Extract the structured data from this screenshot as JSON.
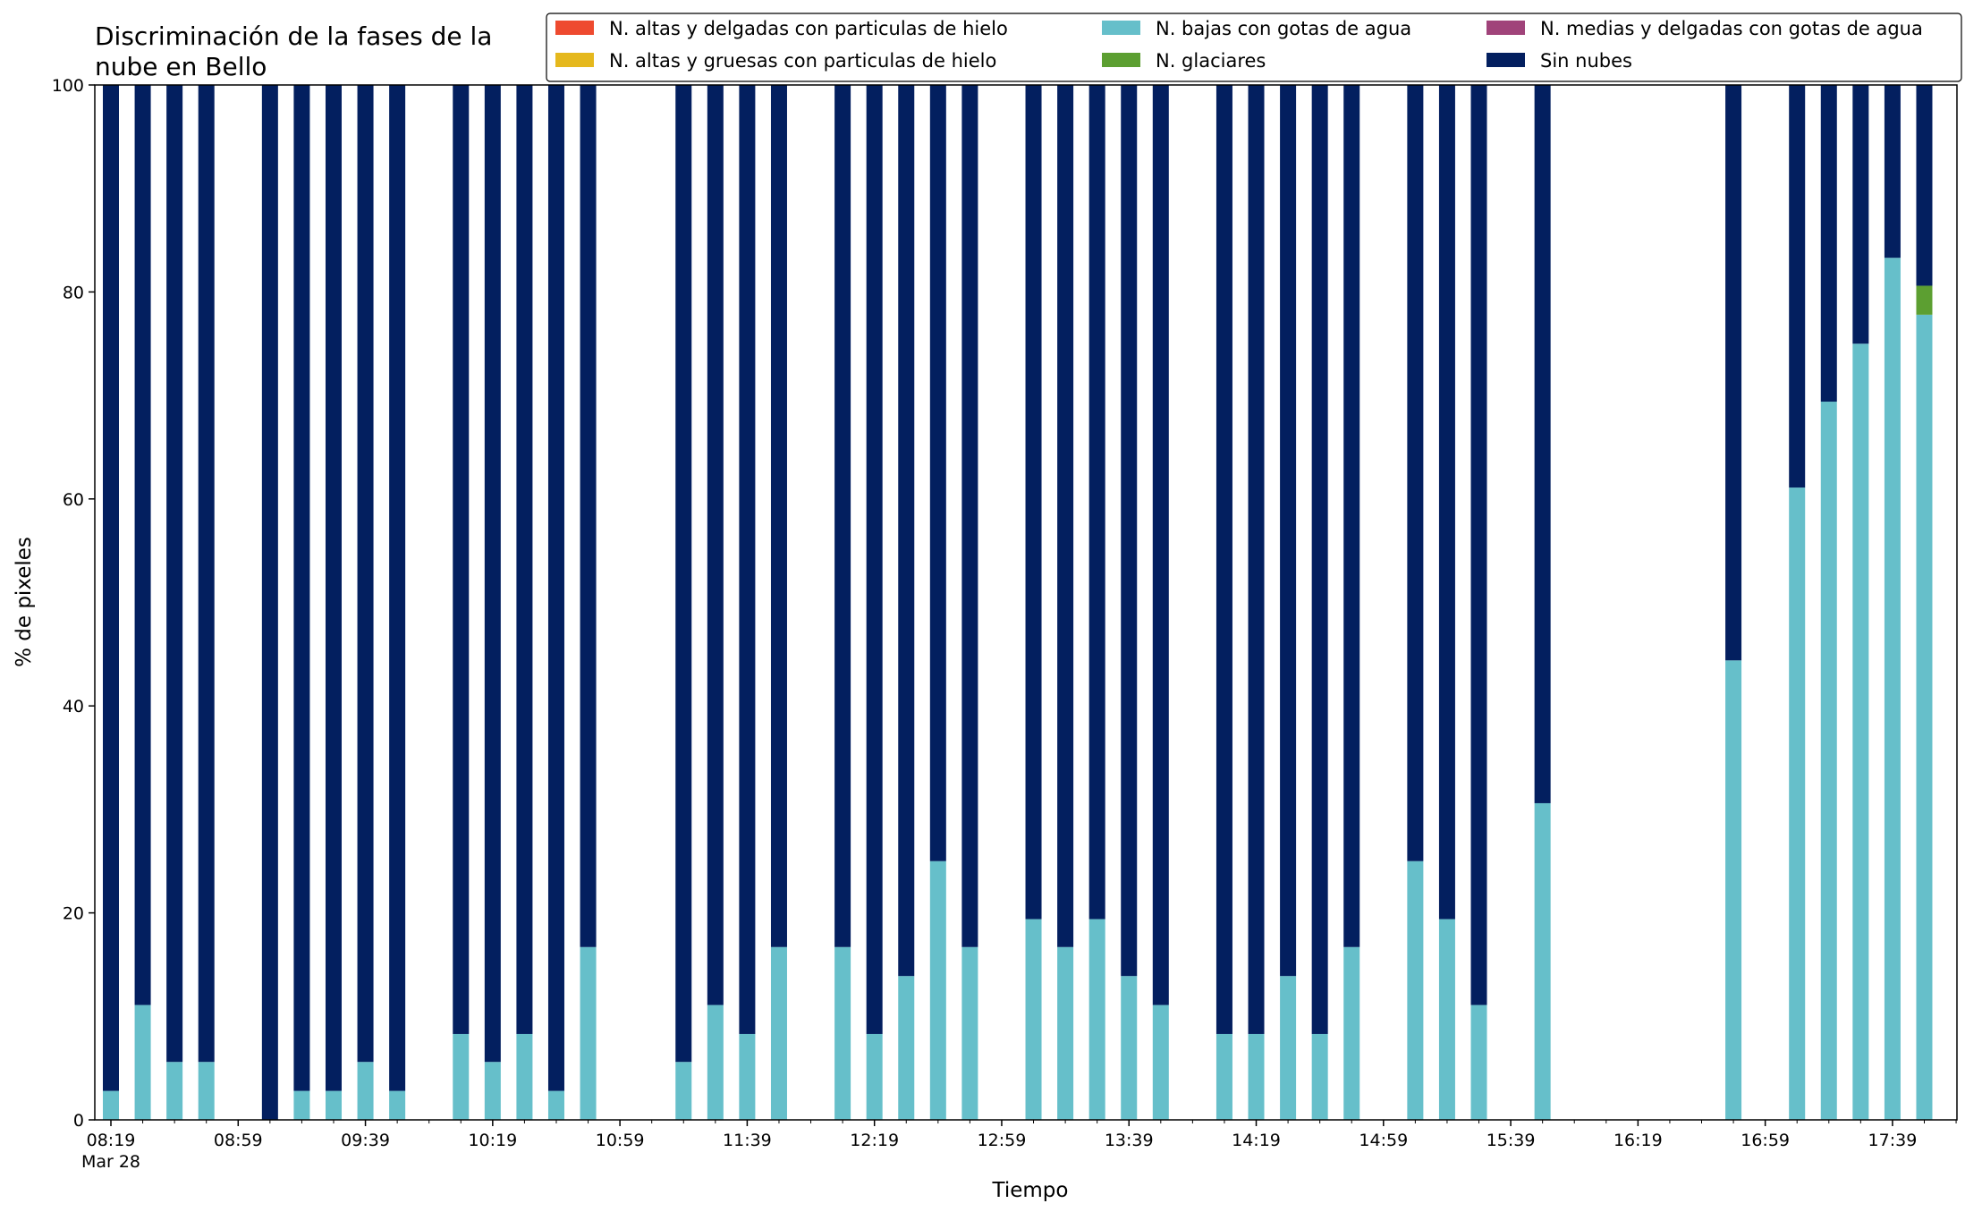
{
  "chart_data": {
    "type": "bar",
    "stacked": true,
    "title_line1": "Discriminación de la fases de la",
    "title_line2": "nube en Bello",
    "xlabel": "Tiempo",
    "ylabel": "% de pixeles",
    "ylim": [
      0,
      100
    ],
    "yticks": [
      "0",
      "20",
      "40",
      "60",
      "80",
      "100"
    ],
    "xtick_labels": [
      "08:19",
      "08:59",
      "09:39",
      "10:19",
      "10:59",
      "11:39",
      "12:19",
      "12:59",
      "13:39",
      "14:19",
      "14:59",
      "15:39",
      "16:19",
      "16:59",
      "17:39"
    ],
    "xtick_sublabel": "Mar 28",
    "minor_ticks_per_label": 4,
    "legend_position": "top-right",
    "legend_ncol": 3,
    "slot_count": 59,
    "series": [
      {
        "name": "N. altas y delgadas con particulas de hielo",
        "color": "#ee4a2f"
      },
      {
        "name": "N. altas y gruesas con particulas de hielo",
        "color": "#e5b81d"
      },
      {
        "name": "N. bajas con gotas de agua",
        "color": "#66bfca"
      },
      {
        "name": "N. glaciares",
        "color": "#5c9f31"
      },
      {
        "name": "N. medias y delgadas con gotas de agua",
        "color": "#a0437a"
      },
      {
        "name": "Sin nubes",
        "color": "#031f5f"
      }
    ],
    "bars": [
      {
        "slot": 0,
        "low": 2.8,
        "glacier": 0,
        "clear": 97.2
      },
      {
        "slot": 1,
        "low": 11.1,
        "glacier": 0,
        "clear": 88.9
      },
      {
        "slot": 2,
        "low": 5.6,
        "glacier": 0,
        "clear": 94.4
      },
      {
        "slot": 3,
        "low": 5.6,
        "glacier": 0,
        "clear": 94.4
      },
      {
        "slot": 5,
        "low": 0,
        "glacier": 0,
        "clear": 100
      },
      {
        "slot": 6,
        "low": 2.8,
        "glacier": 0,
        "clear": 97.2
      },
      {
        "slot": 7,
        "low": 2.8,
        "glacier": 0,
        "clear": 97.2
      },
      {
        "slot": 8,
        "low": 5.6,
        "glacier": 0,
        "clear": 94.4
      },
      {
        "slot": 9,
        "low": 2.8,
        "glacier": 0,
        "clear": 97.2
      },
      {
        "slot": 11,
        "low": 8.3,
        "glacier": 0,
        "clear": 91.7
      },
      {
        "slot": 12,
        "low": 5.6,
        "glacier": 0,
        "clear": 94.4
      },
      {
        "slot": 13,
        "low": 8.3,
        "glacier": 0,
        "clear": 91.7
      },
      {
        "slot": 14,
        "low": 2.8,
        "glacier": 0,
        "clear": 97.2
      },
      {
        "slot": 15,
        "low": 16.7,
        "glacier": 0,
        "clear": 83.3
      },
      {
        "slot": 18,
        "low": 5.6,
        "glacier": 0,
        "clear": 94.4
      },
      {
        "slot": 19,
        "low": 11.1,
        "glacier": 0,
        "clear": 88.9
      },
      {
        "slot": 20,
        "low": 8.3,
        "glacier": 0,
        "clear": 91.7
      },
      {
        "slot": 21,
        "low": 16.7,
        "glacier": 0,
        "clear": 83.3
      },
      {
        "slot": 23,
        "low": 16.7,
        "glacier": 0,
        "clear": 83.3
      },
      {
        "slot": 24,
        "low": 8.3,
        "glacier": 0,
        "clear": 91.7
      },
      {
        "slot": 25,
        "low": 13.9,
        "glacier": 0,
        "clear": 86.1
      },
      {
        "slot": 26,
        "low": 25.0,
        "glacier": 0,
        "clear": 75.0
      },
      {
        "slot": 27,
        "low": 16.7,
        "glacier": 0,
        "clear": 83.3
      },
      {
        "slot": 29,
        "low": 19.4,
        "glacier": 0,
        "clear": 80.6
      },
      {
        "slot": 30,
        "low": 16.7,
        "glacier": 0,
        "clear": 83.3
      },
      {
        "slot": 31,
        "low": 19.4,
        "glacier": 0,
        "clear": 80.6
      },
      {
        "slot": 32,
        "low": 13.9,
        "glacier": 0,
        "clear": 86.1
      },
      {
        "slot": 33,
        "low": 11.1,
        "glacier": 0,
        "clear": 88.9
      },
      {
        "slot": 35,
        "low": 8.3,
        "glacier": 0,
        "clear": 91.7
      },
      {
        "slot": 36,
        "low": 8.3,
        "glacier": 0,
        "clear": 91.7
      },
      {
        "slot": 37,
        "low": 13.9,
        "glacier": 0,
        "clear": 86.1
      },
      {
        "slot": 38,
        "low": 8.3,
        "glacier": 0,
        "clear": 91.7
      },
      {
        "slot": 39,
        "low": 16.7,
        "glacier": 0,
        "clear": 83.3
      },
      {
        "slot": 41,
        "low": 25.0,
        "glacier": 0,
        "clear": 75.0
      },
      {
        "slot": 42,
        "low": 19.4,
        "glacier": 0,
        "clear": 80.6
      },
      {
        "slot": 43,
        "low": 11.1,
        "glacier": 0,
        "clear": 88.9
      },
      {
        "slot": 45,
        "low": 30.6,
        "glacier": 0,
        "clear": 69.4
      },
      {
        "slot": 51,
        "low": 44.4,
        "glacier": 0,
        "clear": 55.6
      },
      {
        "slot": 53,
        "low": 61.1,
        "glacier": 0,
        "clear": 38.9
      },
      {
        "slot": 54,
        "low": 69.4,
        "glacier": 0,
        "clear": 30.6
      },
      {
        "slot": 55,
        "low": 75.0,
        "glacier": 0,
        "clear": 25.0
      },
      {
        "slot": 56,
        "low": 83.3,
        "glacier": 0,
        "clear": 16.7
      },
      {
        "slot": 57,
        "low": 77.8,
        "glacier": 2.8,
        "clear": 19.4
      }
    ]
  }
}
